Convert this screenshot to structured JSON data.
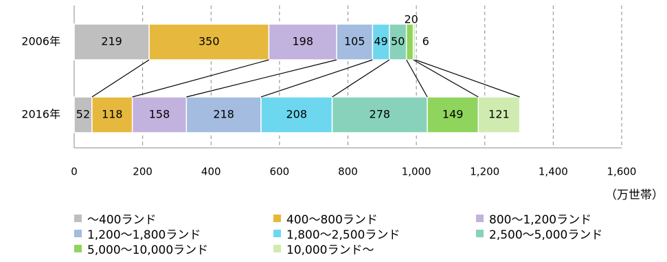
{
  "chart_data": {
    "type": "bar",
    "orientation": "horizontal",
    "stacked": true,
    "categories": [
      "2006年",
      "2016年"
    ],
    "unit_label": "（万世帯）",
    "xlim": [
      0,
      1600
    ],
    "x_ticks": [
      "0",
      "200",
      "400",
      "600",
      "800",
      "1,000",
      "1,200",
      "1,400",
      "1,600"
    ],
    "grid": "vertical dashed",
    "legend_position": "bottom",
    "series": [
      {
        "name": "～400ランド",
        "values": [
          219,
          52
        ],
        "color": "#BFBFBF"
      },
      {
        "name": "400～800ランド",
        "values": [
          350,
          118
        ],
        "color": "#E6B83E"
      },
      {
        "name": "800～1,200ランド",
        "values": [
          198,
          158
        ],
        "color": "#C2B2DE"
      },
      {
        "name": "1,200～1,800ランド",
        "values": [
          105,
          218
        ],
        "color": "#A3BCE0"
      },
      {
        "name": "1,800～2,500ランド",
        "values": [
          49,
          208
        ],
        "color": "#6DD7EF"
      },
      {
        "name": "2,500～5,000ランド",
        "values": [
          50,
          278
        ],
        "color": "#88D2BB"
      },
      {
        "name": "5,000～10,000ランド",
        "values": [
          20,
          149
        ],
        "color": "#8FD45D"
      },
      {
        "name": "10,000ランド～",
        "values": [
          6,
          121
        ],
        "color": "#CFEBB0"
      }
    ]
  }
}
